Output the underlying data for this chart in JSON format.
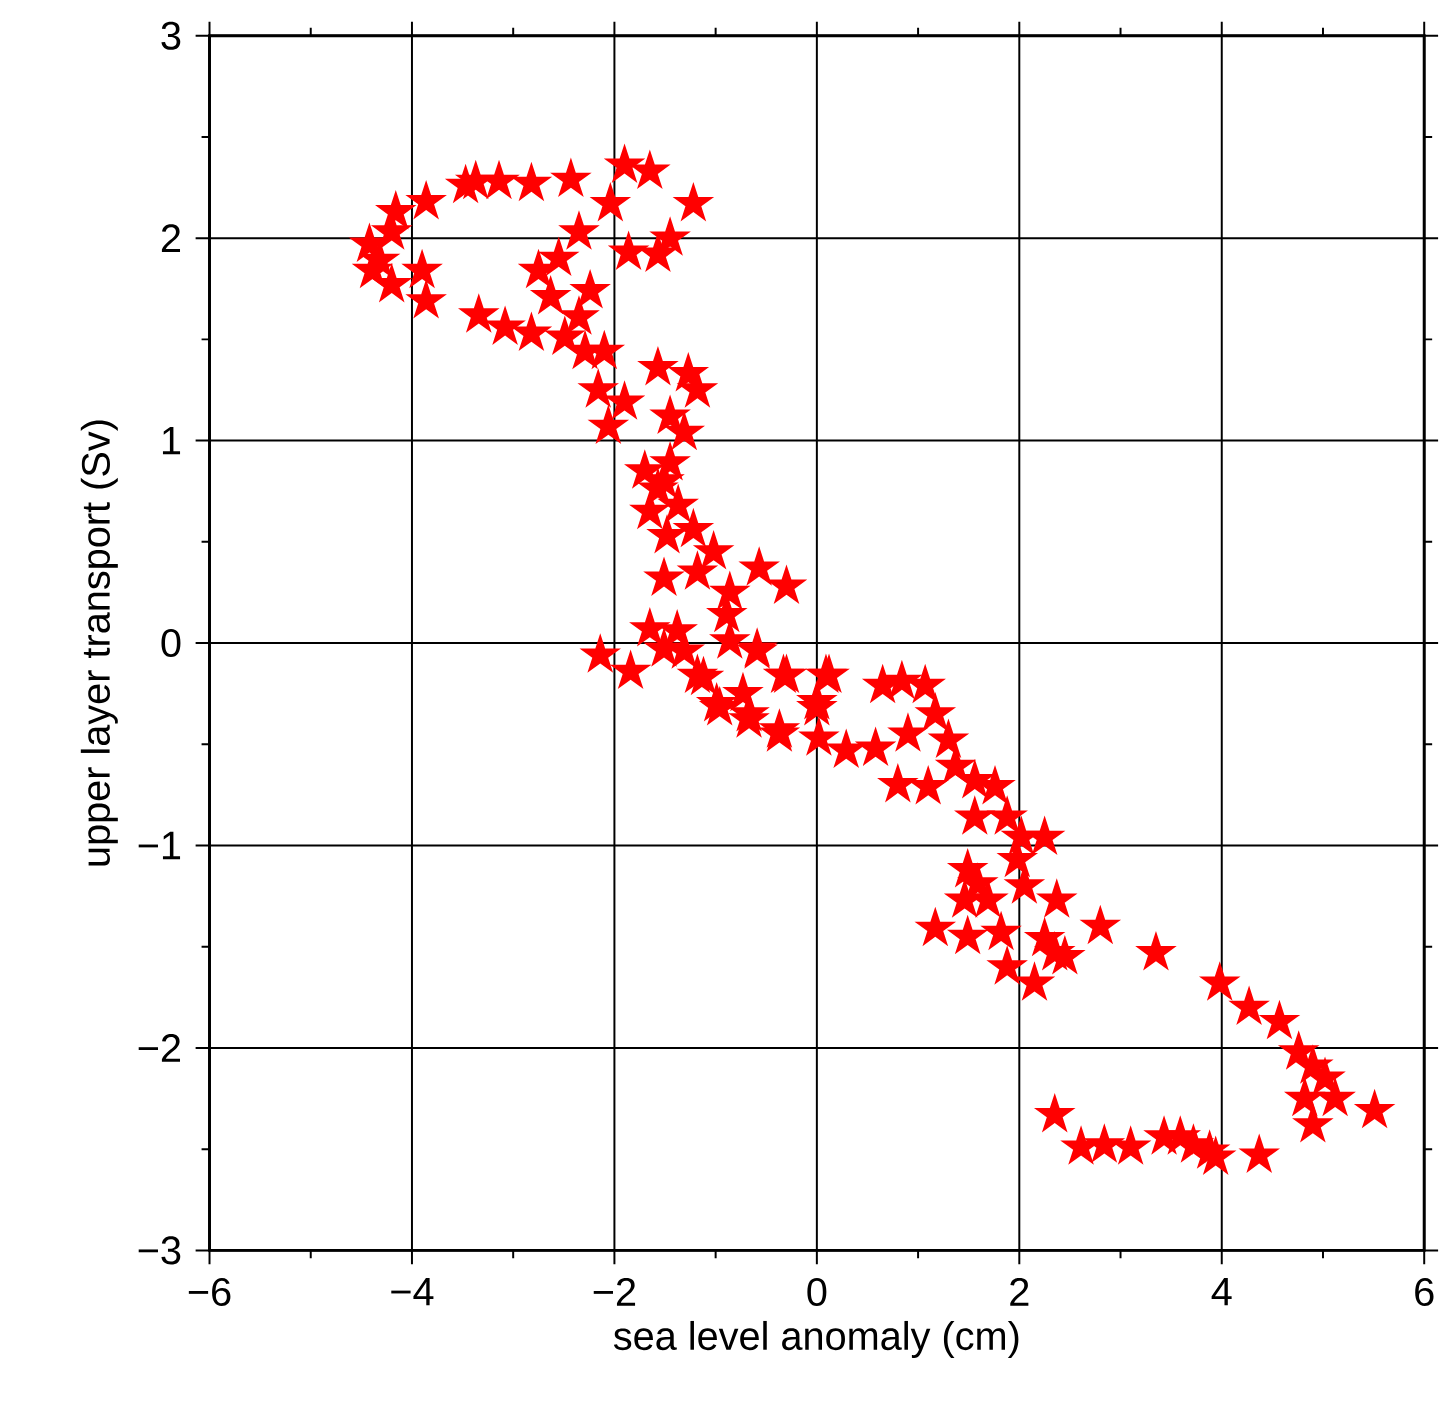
{
  "chart_data": {
    "type": "scatter",
    "xlabel": "sea level anomaly (cm)",
    "ylabel": "upper layer transport (Sv)",
    "xlim": [
      -6,
      6
    ],
    "ylim": [
      -3,
      3
    ],
    "xticks": [
      {
        "value": -6,
        "label": "−6"
      },
      {
        "value": -4,
        "label": "−4"
      },
      {
        "value": -2,
        "label": "−2"
      },
      0,
      2,
      4,
      6
    ],
    "yticks": [
      {
        "value": -3,
        "label": "−3"
      },
      {
        "value": -2,
        "label": "−2"
      },
      {
        "value": -1,
        "label": "−1"
      },
      0,
      1,
      2,
      3
    ],
    "grid": true,
    "marker": "star",
    "series": [
      {
        "color": "#ff0000",
        "x": [
          -4.42,
          -4.16,
          -3.86,
          -3.47,
          -3.37,
          -3.14,
          -2.82,
          -2.43,
          -4.2,
          -4.32,
          -4.39,
          -4.2,
          -3.9,
          -3.86,
          -3.34,
          -3.08,
          -2.82,
          -1.9,
          -1.65,
          -1.22,
          -1.45,
          -1.57,
          -1.86,
          -2.04,
          -2.35,
          -2.55,
          -2.75,
          -2.63,
          -2.24,
          -2.35,
          -2.49,
          -2.29,
          -2.1,
          -2.16,
          -2.06,
          -1.9,
          -1.57,
          -1.27,
          -1.18,
          -1.45,
          -1.31,
          -1.45,
          -1.7,
          -1.51,
          -1.57,
          -1.65,
          -1.37,
          -1.48,
          -1.22,
          -1.51,
          -1.18,
          -1.02,
          -0.86,
          -0.57,
          -0.3,
          -1.65,
          -1.38,
          -1.51,
          -2.14,
          -1.84,
          -1.18,
          -0.89,
          -0.86,
          -0.59,
          -0.99,
          -0.73,
          -0.33,
          -0.37,
          0,
          0.09,
          -0.67,
          -1.31,
          -1.12,
          -0.96,
          -0.67,
          -0.37,
          -0.59,
          -0.3,
          0.12,
          0,
          0.02,
          0.29,
          0.58,
          0.8,
          1.1,
          0.65,
          0.84,
          1.07,
          1.17,
          0.9,
          1.3,
          1.37,
          1.56,
          1.76,
          1.56,
          1.88,
          2.02,
          2.25,
          1.98,
          1.49,
          1.59,
          1.46,
          1.69,
          2.05,
          2.37,
          1.17,
          1.49,
          1.82,
          2.25,
          2.45,
          1.88,
          2.15,
          2.8,
          3.35,
          3.98,
          4.27,
          4.57,
          4.76,
          4.9,
          5.02,
          5.12,
          4.82,
          4.9,
          5.51,
          2.35,
          2.61,
          2.84,
          3.1,
          3.43,
          3.59,
          3.72,
          3.88,
          3.94,
          4.37,
          2.35
        ],
        "values": [
          1.97,
          2.13,
          2.18,
          2.26,
          2.28,
          2.28,
          2.27,
          2.29,
          2.03,
          1.89,
          1.84,
          1.77,
          1.84,
          1.69,
          1.62,
          1.56,
          1.53,
          2.36,
          2.33,
          2.17,
          2.0,
          1.92,
          1.93,
          2.17,
          2.03,
          1.9,
          1.84,
          1.71,
          1.74,
          1.61,
          1.51,
          1.44,
          1.44,
          1.25,
          1.07,
          1.19,
          1.36,
          1.33,
          1.25,
          1.12,
          1.04,
          0.89,
          0.85,
          0.8,
          0.76,
          0.65,
          0.68,
          0.53,
          0.56,
          0.32,
          0.35,
          0.45,
          0.25,
          0.37,
          0.28,
          0.07,
          0.06,
          -0.03,
          -0.06,
          -0.14,
          -0.16,
          0.14,
          0.01,
          -0.04,
          -0.3,
          -0.25,
          -0.16,
          -0.43,
          -0.32,
          -0.16,
          -0.38,
          -0.04,
          -0.17,
          -0.32,
          -0.35,
          -0.45,
          -0.03,
          -0.16,
          -0.16,
          -0.29,
          -0.47,
          -0.53,
          -0.52,
          -0.7,
          -0.71,
          -0.21,
          -0.19,
          -0.21,
          -0.35,
          -0.45,
          -0.48,
          -0.61,
          -0.68,
          -0.71,
          -0.86,
          -0.86,
          -0.96,
          -0.96,
          -1.07,
          -1.12,
          -1.19,
          -1.27,
          -1.27,
          -1.2,
          -1.27,
          -1.41,
          -1.45,
          -1.43,
          -1.46,
          -1.55,
          -1.6,
          -1.68,
          -1.4,
          -1.53,
          -1.68,
          -1.8,
          -1.87,
          -2.02,
          -2.09,
          -2.15,
          -2.25,
          -2.25,
          -2.38,
          -2.31,
          -2.33,
          -2.49,
          -2.48,
          -2.49,
          -2.44,
          -2.44,
          -2.48,
          -2.51,
          -2.54,
          -2.53,
          -1.53
        ]
      }
    ]
  }
}
